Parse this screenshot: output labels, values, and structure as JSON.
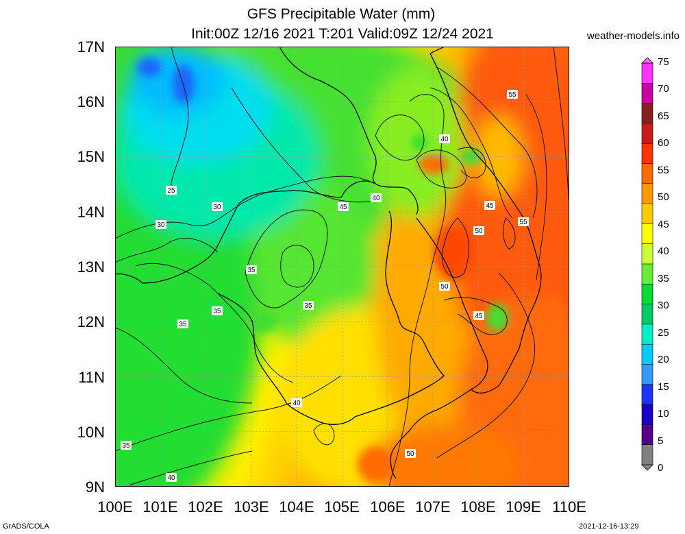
{
  "title_line1": "GFS Precipitable Water (mm)",
  "title_line2": "Init:00Z 12/16 2021 T:201 Valid:09Z 12/24 2021",
  "site": "weather-models.info",
  "y_axis_labels": [
    "17N",
    "16N",
    "15N",
    "14N",
    "13N",
    "12N",
    "11N",
    "10N",
    "9N"
  ],
  "x_axis_labels": [
    "100E",
    "101E",
    "102E",
    "103E",
    "104E",
    "105E",
    "106E",
    "107E",
    "108E",
    "109E",
    "110E"
  ],
  "colorbar": {
    "ticks": [
      "75",
      "70",
      "65",
      "60",
      "55",
      "50",
      "45",
      "40",
      "35",
      "30",
      "25",
      "20",
      "15",
      "10",
      "5",
      "0"
    ],
    "colors": [
      "#ff33ff",
      "#cc00a0",
      "#8c2020",
      "#cc1a1a",
      "#ff3300",
      "#ff6a00",
      "#ff9900",
      "#ffcc00",
      "#ffff00",
      "#ccff33",
      "#66ee33",
      "#00dd33",
      "#00cc66",
      "#00eecc",
      "#00ccff",
      "#3399ff",
      "#1a33ff",
      "#1a00cc",
      "#550088",
      "#808080"
    ]
  },
  "contour_labels": [
    "25",
    "30",
    "30",
    "35",
    "35",
    "35",
    "35",
    "35",
    "40",
    "40",
    "40",
    "40",
    "45",
    "45",
    "45",
    "50",
    "50",
    "50",
    "55",
    "55"
  ],
  "footer_left": "GrADS/COLA",
  "footer_right": "2021-12-16-13:29"
}
